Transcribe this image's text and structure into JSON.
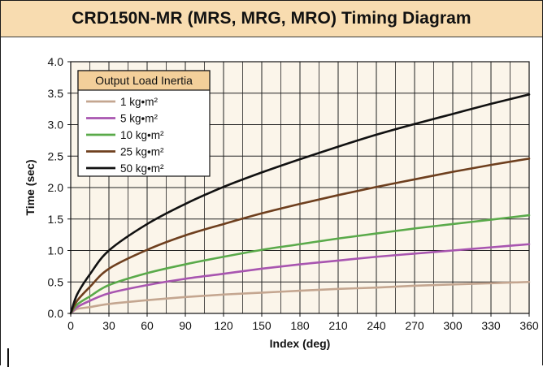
{
  "header": {
    "title": "CRD150N-MR (MRS, MRG, MRO) Timing Diagram"
  },
  "colors": {
    "title_background": "#f8dcb0",
    "plot_background": "#fbf5ea",
    "legend_header_background": "#f3cf9a",
    "grid": "#222222"
  },
  "chart_data": {
    "type": "line",
    "xlabel": "Index (deg)",
    "ylabel": "Time (sec)",
    "xlim": [
      0,
      360
    ],
    "ylim": [
      0,
      4.0
    ],
    "x_ticks": [
      "0",
      "30",
      "60",
      "90",
      "120",
      "150",
      "180",
      "210",
      "240",
      "270",
      "300",
      "330",
      "360"
    ],
    "y_ticks": [
      "0.0",
      "0.5",
      "1.0",
      "1.5",
      "2.0",
      "2.5",
      "3.0",
      "3.5",
      "4.0"
    ],
    "grid": true,
    "legend": {
      "title": "Output Load Inertia",
      "position": "top-left"
    },
    "x": [
      0,
      5,
      15,
      30,
      60,
      90,
      120,
      150,
      180,
      210,
      240,
      270,
      300,
      330,
      360
    ],
    "series": [
      {
        "name": "1 kg•m²",
        "color": "#c4a690",
        "values": [
          0,
          0.07,
          0.1,
          0.15,
          0.21,
          0.26,
          0.3,
          0.33,
          0.36,
          0.39,
          0.41,
          0.44,
          0.46,
          0.48,
          0.5
        ]
      },
      {
        "name": "5 kg•m²",
        "color": "#a855b0",
        "values": [
          0,
          0.1,
          0.2,
          0.32,
          0.45,
          0.55,
          0.63,
          0.71,
          0.78,
          0.84,
          0.9,
          0.95,
          1.0,
          1.05,
          1.1
        ]
      },
      {
        "name": "10 kg•m²",
        "color": "#5aaa4a",
        "values": [
          0,
          0.14,
          0.27,
          0.45,
          0.64,
          0.78,
          0.9,
          1.01,
          1.1,
          1.19,
          1.27,
          1.35,
          1.42,
          1.49,
          1.56
        ]
      },
      {
        "name": "25 kg•m²",
        "color": "#6e3f1e",
        "values": [
          0,
          0.2,
          0.42,
          0.71,
          1.01,
          1.24,
          1.42,
          1.59,
          1.74,
          1.88,
          2.01,
          2.13,
          2.25,
          2.36,
          2.46
        ]
      },
      {
        "name": "50 kg•m²",
        "color": "#111111",
        "values": [
          0,
          0.3,
          0.62,
          1.0,
          1.42,
          1.74,
          2.01,
          2.24,
          2.45,
          2.65,
          2.84,
          3.01,
          3.17,
          3.33,
          3.48
        ]
      }
    ]
  }
}
